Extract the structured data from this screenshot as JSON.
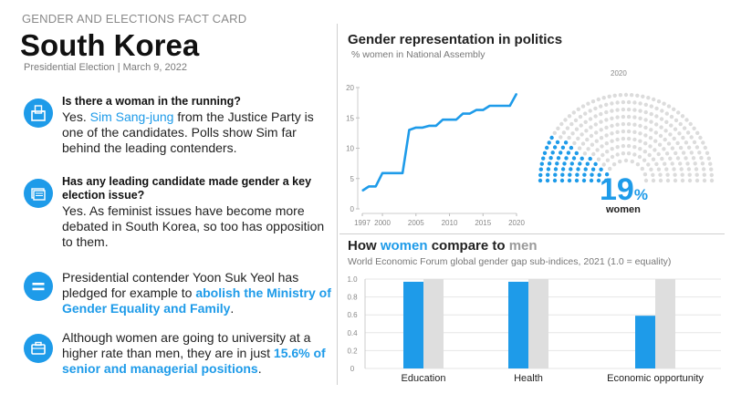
{
  "header": {
    "kicker": "GENDER AND ELECTIONS FACT CARD",
    "title": "South Korea",
    "subtitle": "Presidential Election | March 9, 2022"
  },
  "items": [
    {
      "icon": "ballot-box-icon",
      "question": "Is there a woman in the running?",
      "parts": [
        {
          "text": "Yes. "
        },
        {
          "text": "Sim Sang-jung",
          "hl": true
        },
        {
          "text": " from the Justice Party is one of the candidates. Polls show Sim far behind the leading contenders."
        }
      ]
    },
    {
      "icon": "newspapers-icon",
      "question": "Has any leading candidate made gender a key election issue?",
      "parts": [
        {
          "text": "Yes. As feminist issues have become more debated in South Korea, so too has opposition to them."
        }
      ]
    },
    {
      "icon": "equals-icon",
      "question": "",
      "parts": [
        {
          "text": "Presidential contender Yoon Suk Yeol has pledged for example to "
        },
        {
          "text": "abolish the Ministry of Gender Equality and Family",
          "hl": true,
          "bold": true
        },
        {
          "text": "."
        }
      ]
    },
    {
      "icon": "briefcase-icon",
      "question": "",
      "parts": [
        {
          "text": "Although women are going to university at a higher rate than men, they are in just "
        },
        {
          "text": "15.6% of senior and managerial positions",
          "hl": true,
          "bold": true
        },
        {
          "text": "."
        }
      ]
    }
  ],
  "politics": {
    "title": "Gender representation in politics",
    "subtitle": "% women in National Assembly",
    "parliament_year": "2020",
    "percent_value": "19",
    "percent_sign": "%",
    "percent_label": "women",
    "seats_total": 300,
    "seats_women": 57
  },
  "compare": {
    "title_parts": [
      {
        "text": "How "
      },
      {
        "text": "women",
        "hl": true
      },
      {
        "text": " compare to "
      },
      {
        "text": "men",
        "gray": true
      }
    ],
    "subtitle": "World Economic Forum global gender gap sub-indices, 2021 (1.0 = equality)"
  },
  "colors": {
    "accent": "#1e9be9",
    "men": "#dedede",
    "seat_empty": "#dcdcdc"
  },
  "chart_data": [
    {
      "type": "line",
      "title": "Gender representation in politics",
      "subtitle": "% women in National Assembly",
      "x": [
        1997,
        1998,
        1999,
        2000,
        2001,
        2002,
        2003,
        2004,
        2005,
        2006,
        2007,
        2008,
        2009,
        2010,
        2011,
        2012,
        2013,
        2014,
        2015,
        2016,
        2017,
        2018,
        2019,
        2020
      ],
      "series": [
        {
          "values": [
            3.0,
            3.7,
            3.7,
            5.9,
            5.9,
            5.9,
            5.9,
            13.0,
            13.4,
            13.4,
            13.7,
            13.7,
            14.7,
            14.7,
            14.7,
            15.7,
            15.7,
            16.3,
            16.3,
            17.0,
            17.0,
            17.0,
            17.0,
            19.0
          ]
        }
      ],
      "xticks": [
        1997,
        2000,
        2005,
        2010,
        2015,
        2020
      ],
      "yticks": [
        0,
        5,
        10,
        15,
        20
      ],
      "xlim": [
        1997,
        2020
      ],
      "ylim": [
        0,
        20
      ],
      "grid": false
    },
    {
      "type": "bar",
      "categories": [
        "Education",
        "Health",
        "Economic opportunity"
      ],
      "series": [
        {
          "values": [
            0.97,
            0.97,
            0.59
          ]
        },
        {
          "values": [
            1.0,
            1.0,
            1.0
          ]
        }
      ],
      "yticks": [
        "0",
        "0.2",
        "0.4",
        "0.6",
        "0.8",
        "1.0"
      ],
      "ylim": [
        0,
        1.0
      ],
      "grid": true
    }
  ]
}
